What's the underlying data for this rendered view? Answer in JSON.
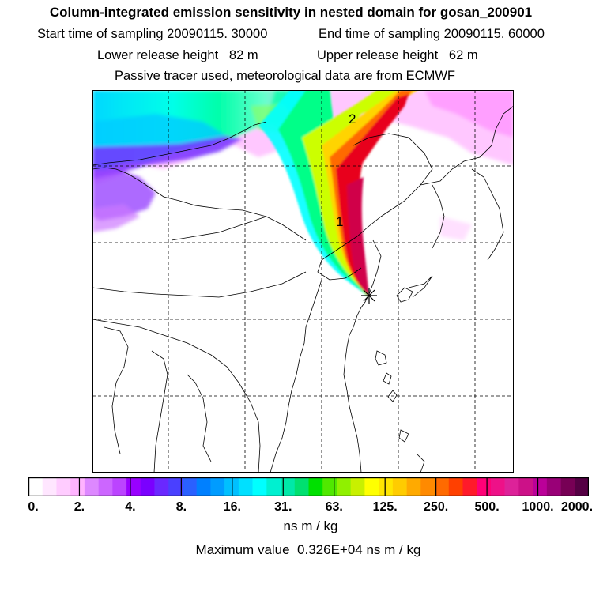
{
  "title": "Column-integrated emission sensitivity in nested domain for gosan_200901",
  "sampling": {
    "start": "Start time of sampling 20090115. 30000",
    "end": "End time of sampling 20090115. 60000"
  },
  "release": {
    "lower": "Lower release height   82 m",
    "upper": "Upper release height   62 m"
  },
  "tracer_note": "Passive tracer used, meteorological data are from ECMWF",
  "map": {
    "markers": [
      {
        "label": "1"
      },
      {
        "label": "2"
      }
    ],
    "colors": {
      "plume_core": "#e8001a",
      "plume_outer": "#ffd400",
      "background_low": "#ff99ff",
      "background_mid": "#00e8e8"
    }
  },
  "colorbar": {
    "colors": [
      "#ffffff",
      "#ffe6ff",
      "#ffccff",
      "#ffb3ff",
      "#dd88ff",
      "#cc66ff",
      "#bb44ff",
      "#9900ff",
      "#7a00ff",
      "#6a28ff",
      "#4a40ff",
      "#2a60ff",
      "#0080ff",
      "#009cff",
      "#00c0ff",
      "#00e0ff",
      "#00ffff",
      "#00f0d0",
      "#00e8a8",
      "#00e070",
      "#00e000",
      "#50e800",
      "#90f000",
      "#c8f000",
      "#ffff00",
      "#ffe600",
      "#ffcc00",
      "#ffaa00",
      "#ff8a00",
      "#ff6a00",
      "#ff4000",
      "#ff1a2a",
      "#ff0077",
      "#ee1188",
      "#dd2299",
      "#cc1188",
      "#bb0099",
      "#990077",
      "#770055",
      "#550044"
    ],
    "ticks": [
      "0.",
      "2.",
      "4.",
      "8.",
      "16.",
      "31.",
      "63.",
      "125.",
      "250.",
      "500.",
      "1000.",
      "2000."
    ]
  },
  "units": "ns m / kg",
  "maximum": "Maximum value  0.326E+04 ns m / kg"
}
